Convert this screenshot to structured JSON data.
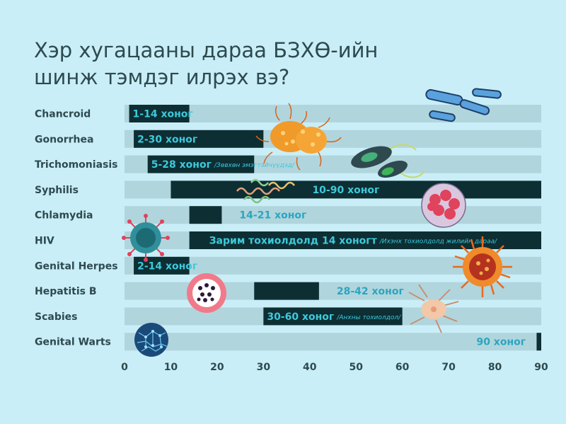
{
  "title": {
    "line1": "Хэр хугацааны дараа БЗХӨ-ийн",
    "line2": "шинж тэмдэг илрэх вэ?"
  },
  "colors": {
    "background": "#c9eef7",
    "track": "#b1d5dd",
    "bar": "#0d2e33",
    "label_on_bar": "#3ec9dc",
    "label_off_bar": "#2aa6bf",
    "text": "#2e4a4f"
  },
  "chart_data": {
    "type": "bar",
    "orientation": "horizontal",
    "title": "Хэр хугацааны дараа БЗХӨ-ийн шинж тэмдэг илрэх вэ?",
    "xlim": [
      0,
      90
    ],
    "xticks": [
      0,
      10,
      20,
      30,
      40,
      50,
      60,
      70,
      80,
      90
    ],
    "categories": [
      "Chancroid",
      "Gonorrhea",
      "Trichomoniasis",
      "Syphilis",
      "Chlamydia",
      "HIV",
      "Genital Herpes",
      "Hepatitis B",
      "Scabies",
      "Genital Warts"
    ],
    "ranges": [
      {
        "start": 1,
        "end": 14,
        "label": "1-14 хоног",
        "note": "",
        "label_on_bar": true
      },
      {
        "start": 2,
        "end": 30,
        "label": "2-30 хоног",
        "note": "",
        "label_on_bar": true
      },
      {
        "start": 5,
        "end": 28,
        "label": "5-28 хоног",
        "note": "/Зөвхөн эмэгтэйчүүдэд/",
        "label_on_bar": true
      },
      {
        "start": 10,
        "end": 90,
        "label": "10-90 хоног",
        "note": "",
        "label_on_bar": true
      },
      {
        "start": 14,
        "end": 21,
        "label": "14-21 хоног",
        "note": "",
        "label_on_bar": false
      },
      {
        "start": 14,
        "end": 90,
        "label": "Зарим тохиолдолд 14 хоногт",
        "note": "/Ихэнх тохиолдолд жилийн дараа/",
        "label_on_bar": true
      },
      {
        "start": 2,
        "end": 14,
        "label": "2-14 хоног",
        "note": "",
        "label_on_bar": true
      },
      {
        "start": 28,
        "end": 42,
        "label": "28-42 хоног",
        "note": "",
        "label_on_bar": false
      },
      {
        "start": 30,
        "end": 60,
        "label": "30-60 хоног",
        "note": "/Анхны тохиолдол/",
        "label_on_bar": true
      },
      {
        "start": 89,
        "end": 90,
        "label": "90 хоног",
        "note": "",
        "label_on_bar": false
      }
    ],
    "grid": false,
    "legend": "none"
  },
  "icons": [
    "rod-bacteria-icon",
    "orange-bacterium-icon",
    "trichomonas-icon",
    "spirochete-icon",
    "pink-cell-cluster-icon",
    "hiv-virus-icon",
    "herpes-virus-icon",
    "hepatitis-b-icon",
    "scabies-mite-icon",
    "wart-virus-icon"
  ]
}
